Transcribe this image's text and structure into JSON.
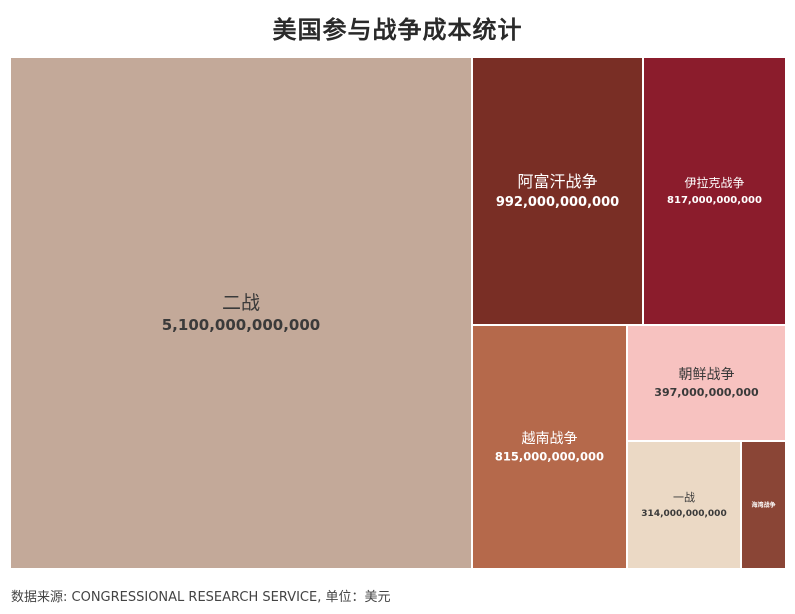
{
  "chart_data": {
    "type": "treemap",
    "title": "美国参与战争成本统计",
    "source": "数据来源: CONGRESSIONAL RESEARCH SERVICE, 单位：美元",
    "unit": "美元",
    "items": [
      {
        "name": "二战",
        "value": 5100000000000,
        "value_label": "5,100,000,000,000",
        "color": "#c3a999",
        "text_color": "#3a3a3a"
      },
      {
        "name": "阿富汗战争",
        "value": 992000000000,
        "value_label": "992,000,000,000",
        "color": "#792e25",
        "text_color": "#ffffff"
      },
      {
        "name": "伊拉克战争",
        "value": 817000000000,
        "value_label": "817,000,000,000",
        "color": "#8b1c2c",
        "text_color": "#ffffff"
      },
      {
        "name": "越南战争",
        "value": 815000000000,
        "value_label": "815,000,000,000",
        "color": "#b5694b",
        "text_color": "#ffffff"
      },
      {
        "name": "朝鲜战争",
        "value": 397000000000,
        "value_label": "397,000,000,000",
        "color": "#f7c2c0",
        "text_color": "#3a3a3a"
      },
      {
        "name": "一战",
        "value": 314000000000,
        "value_label": "314,000,000,000",
        "color": "#ebd9c5",
        "text_color": "#3a3a3a"
      },
      {
        "name": "海湾战争",
        "value": 96000000000,
        "value_label": "",
        "color": "#8a4536",
        "text_color": "#ffffff"
      }
    ]
  }
}
